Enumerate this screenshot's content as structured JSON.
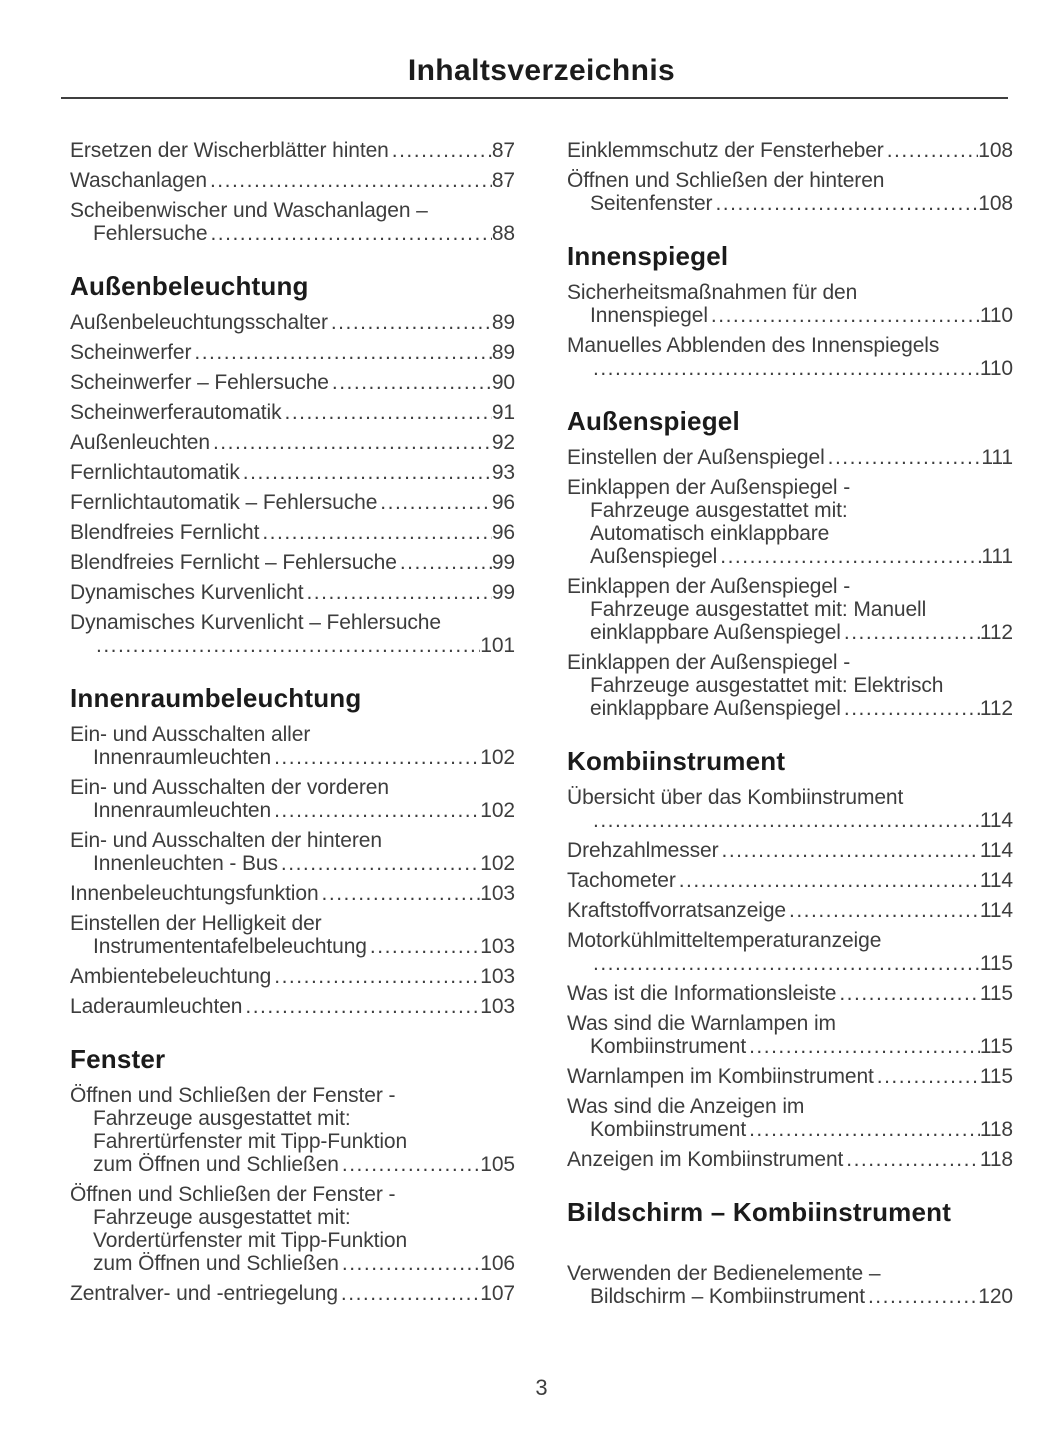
{
  "page": {
    "title": "Inhaltsverzeichnis",
    "page_number": "3"
  },
  "toc": {
    "columns": [
      {
        "blocks": [
          {
            "type": "entries",
            "items": [
              {
                "lines": [
                  "Ersetzen der Wischerblätter hinten"
                ],
                "page": "87"
              },
              {
                "lines": [
                  "Waschanlagen"
                ],
                "page": "87"
              },
              {
                "lines": [
                  "Scheibenwischer und Waschanlagen –",
                  "Fehlersuche"
                ],
                "page": "88"
              }
            ]
          },
          {
            "type": "heading",
            "text": "Außenbeleuchtung"
          },
          {
            "type": "entries",
            "items": [
              {
                "lines": [
                  "Außenbeleuchtungsschalter"
                ],
                "page": "89"
              },
              {
                "lines": [
                  "Scheinwerfer"
                ],
                "page": "89"
              },
              {
                "lines": [
                  "Scheinwerfer – Fehlersuche"
                ],
                "page": "90"
              },
              {
                "lines": [
                  "Scheinwerferautomatik"
                ],
                "page": "91"
              },
              {
                "lines": [
                  "Außenleuchten"
                ],
                "page": "92"
              },
              {
                "lines": [
                  "Fernlichtautomatik"
                ],
                "page": "93"
              },
              {
                "lines": [
                  "Fernlichtautomatik – Fehlersuche"
                ],
                "page": "96"
              },
              {
                "lines": [
                  "Blendfreies Fernlicht"
                ],
                "page": "96"
              },
              {
                "lines": [
                  "Blendfreies Fernlicht – Fehlersuche"
                ],
                "page": "99"
              },
              {
                "lines": [
                  "Dynamisches Kurvenlicht"
                ],
                "page": "99"
              },
              {
                "lines": [
                  "Dynamisches Kurvenlicht – Fehlersuche",
                  ""
                ],
                "page": "101"
              }
            ]
          },
          {
            "type": "heading",
            "text": "Innenraumbeleuchtung"
          },
          {
            "type": "entries",
            "items": [
              {
                "lines": [
                  "Ein- und Ausschalten aller",
                  "Innenraumleuchten"
                ],
                "page": "102"
              },
              {
                "lines": [
                  "Ein- und Ausschalten der vorderen",
                  "Innenraumleuchten"
                ],
                "page": "102"
              },
              {
                "lines": [
                  "Ein- und Ausschalten der hinteren",
                  "Innenleuchten - Bus"
                ],
                "page": "102"
              },
              {
                "lines": [
                  "Innenbeleuchtungsfunktion"
                ],
                "page": "103"
              },
              {
                "lines": [
                  "Einstellen der Helligkeit der",
                  "Instrumententafelbeleuchtung"
                ],
                "page": "103"
              },
              {
                "lines": [
                  "Ambientebeleuchtung"
                ],
                "page": "103"
              },
              {
                "lines": [
                  "Laderaumleuchten"
                ],
                "page": "103"
              }
            ]
          },
          {
            "type": "heading",
            "text": "Fenster"
          },
          {
            "type": "entries",
            "items": [
              {
                "lines": [
                  "Öffnen und Schließen der Fenster -",
                  "Fahrzeuge ausgestattet mit:",
                  "Fahrertürfenster mit Tipp-Funktion",
                  "zum Öffnen und Schließen"
                ],
                "page": "105"
              },
              {
                "lines": [
                  "Öffnen und Schließen der Fenster -",
                  "Fahrzeuge ausgestattet mit:",
                  "Vordertürfenster mit Tipp-Funktion",
                  "zum Öffnen und Schließen"
                ],
                "page": "106"
              },
              {
                "lines": [
                  "Zentralver- und -entriegelung"
                ],
                "page": "107"
              }
            ]
          }
        ]
      },
      {
        "blocks": [
          {
            "type": "entries",
            "items": [
              {
                "lines": [
                  "Einklemmschutz der Fensterheber"
                ],
                "page": "108"
              },
              {
                "lines": [
                  "Öffnen und Schließen der hinteren",
                  "Seitenfenster"
                ],
                "page": "108"
              }
            ]
          },
          {
            "type": "heading",
            "text": "Innenspiegel"
          },
          {
            "type": "entries",
            "items": [
              {
                "lines": [
                  "Sicherheitsmaßnahmen für den",
                  "Innenspiegel"
                ],
                "page": "110"
              },
              {
                "lines": [
                  "Manuelles Abblenden des Innenspiegels",
                  ""
                ],
                "page": "110"
              }
            ]
          },
          {
            "type": "heading",
            "text": "Außenspiegel"
          },
          {
            "type": "entries",
            "items": [
              {
                "lines": [
                  "Einstellen der Außenspiegel"
                ],
                "page": "111"
              },
              {
                "lines": [
                  "Einklappen der Außenspiegel -",
                  "Fahrzeuge ausgestattet mit:",
                  "Automatisch einklappbare",
                  "Außenspiegel"
                ],
                "page": "111"
              },
              {
                "lines": [
                  "Einklappen der Außenspiegel -",
                  "Fahrzeuge ausgestattet mit: Manuell",
                  "einklappbare Außenspiegel"
                ],
                "page": "112"
              },
              {
                "lines": [
                  "Einklappen der Außenspiegel -",
                  "Fahrzeuge ausgestattet mit: Elektrisch",
                  "einklappbare Außenspiegel"
                ],
                "page": "112"
              }
            ]
          },
          {
            "type": "heading",
            "text": "Kombiinstrument"
          },
          {
            "type": "entries",
            "items": [
              {
                "lines": [
                  "Übersicht über das Kombiinstrument",
                  ""
                ],
                "page": "114"
              },
              {
                "lines": [
                  "Drehzahlmesser"
                ],
                "page": "114"
              },
              {
                "lines": [
                  "Tachometer"
                ],
                "page": "114"
              },
              {
                "lines": [
                  "Kraftstoffvorratsanzeige"
                ],
                "page": "114"
              },
              {
                "lines": [
                  "Motorkühlmitteltemperaturanzeige",
                  ""
                ],
                "page": "115"
              },
              {
                "lines": [
                  "Was ist die Informationsleiste"
                ],
                "page": "115"
              },
              {
                "lines": [
                  "Was sind die Warnlampen im",
                  "Kombiinstrument"
                ],
                "page": "115"
              },
              {
                "lines": [
                  "Warnlampen im Kombiinstrument"
                ],
                "page": "115"
              },
              {
                "lines": [
                  "Was sind die Anzeigen im",
                  "Kombiinstrument"
                ],
                "page": "118"
              },
              {
                "lines": [
                  "Anzeigen im Kombiinstrument"
                ],
                "page": "118"
              }
            ]
          },
          {
            "type": "heading",
            "text": "Bildschirm – Kombiinstrument",
            "gap_after": true
          },
          {
            "type": "entries",
            "items": [
              {
                "lines": [
                  "Verwenden der Bedienelemente –",
                  "Bildschirm – Kombiinstrument"
                ],
                "page": "120"
              }
            ]
          }
        ]
      }
    ]
  }
}
